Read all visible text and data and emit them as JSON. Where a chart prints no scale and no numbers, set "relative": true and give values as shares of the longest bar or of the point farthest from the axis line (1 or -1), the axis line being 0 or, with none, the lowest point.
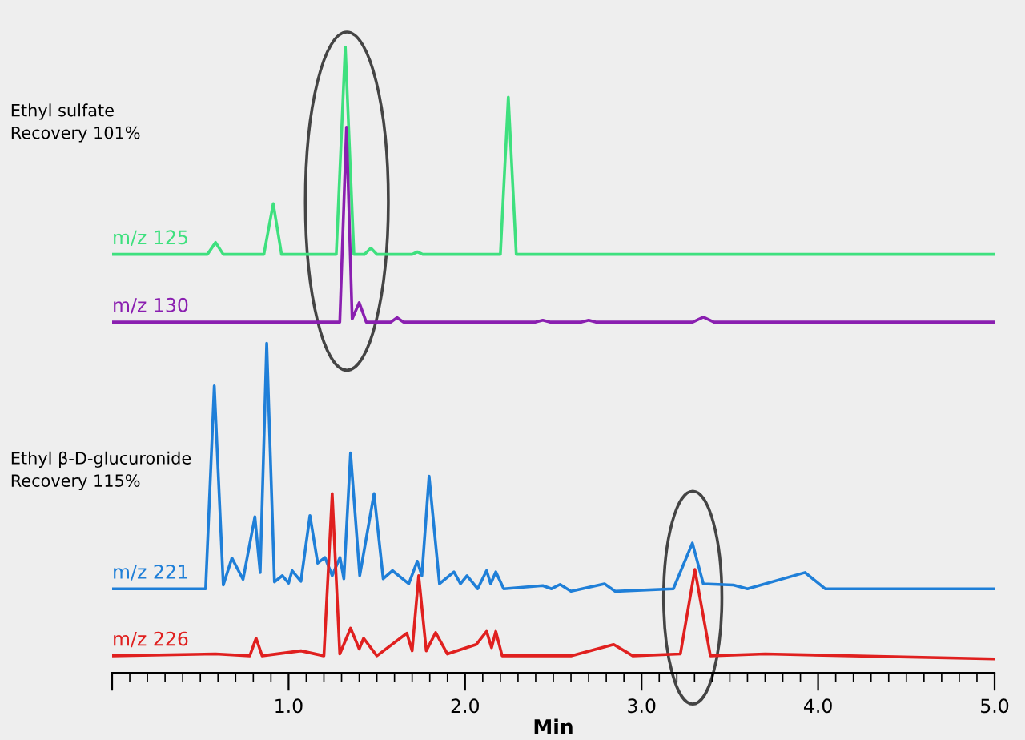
{
  "chart_data": {
    "type": "line",
    "relative": true,
    "xlabel": "Min",
    "xlim": [
      0,
      5.0
    ],
    "xticks": [
      {
        "value": 0,
        "label": null
      },
      {
        "value": 1,
        "label": "1.0"
      },
      {
        "value": 2,
        "label": "2.0"
      },
      {
        "value": 3,
        "label": "3.0"
      },
      {
        "value": 4,
        "label": "4.0"
      },
      {
        "value": 5,
        "label": "5.0"
      }
    ],
    "tick_labels": "x",
    "grid": false,
    "legend": false,
    "marker": "none",
    "line_style": "solid",
    "annotations": [
      "Ethyl sulfate\nRecovery 101%",
      "Ethyl β-D-glucuronide\nRecovery 115%"
    ],
    "series": [
      {
        "name": "m/z 125",
        "color": "#3ee07e",
        "x": [
          0,
          0.54,
          0.586,
          0.63,
          0.86,
          0.913,
          0.96,
          1.27,
          1.321,
          1.37,
          1.43,
          1.466,
          1.5,
          1.7,
          1.73,
          1.76,
          2.2,
          2.245,
          2.29,
          3.0,
          4.0,
          5.0
        ],
        "values": [
          0.668,
          0.668,
          0.687,
          0.668,
          0.668,
          0.749,
          0.668,
          0.668,
          1.0,
          0.668,
          0.668,
          0.678,
          0.668,
          0.668,
          0.672,
          0.668,
          0.668,
          0.919,
          0.668,
          0.668,
          0.668,
          0.668
        ]
      },
      {
        "name": "m/z 130",
        "color": "#8a1fb0",
        "x": [
          0,
          1.29,
          1.328,
          1.36,
          1.4,
          1.44,
          1.58,
          1.614,
          1.65,
          2.4,
          2.44,
          2.48,
          2.66,
          2.7,
          2.74,
          3.29,
          3.35,
          3.41,
          5.0
        ],
        "values": [
          0.56,
          0.56,
          0.871,
          0.565,
          0.591,
          0.56,
          0.56,
          0.567,
          0.56,
          0.56,
          0.563,
          0.56,
          0.56,
          0.563,
          0.56,
          0.56,
          0.568,
          0.56,
          0.56
        ]
      },
      {
        "name": "m/z 221",
        "color": "#1f7fd8",
        "x": [
          0,
          0.53,
          0.579,
          0.63,
          0.679,
          0.742,
          0.809,
          0.839,
          0.876,
          0.92,
          0.965,
          1.0,
          1.02,
          1.07,
          1.121,
          1.165,
          1.206,
          1.247,
          1.291,
          1.313,
          1.351,
          1.403,
          1.484,
          1.536,
          1.588,
          1.681,
          1.729,
          1.755,
          1.796,
          1.855,
          1.937,
          1.974,
          2.011,
          2.071,
          2.122,
          2.145,
          2.174,
          2.219,
          2.44,
          2.49,
          2.538,
          2.6,
          2.79,
          2.85,
          3.18,
          3.288,
          3.35,
          3.52,
          3.6,
          3.926,
          4.04,
          5.0
        ],
        "values": [
          0.134,
          0.134,
          0.458,
          0.14,
          0.183,
          0.149,
          0.249,
          0.16,
          0.526,
          0.145,
          0.155,
          0.143,
          0.163,
          0.146,
          0.251,
          0.175,
          0.184,
          0.155,
          0.184,
          0.15,
          0.351,
          0.155,
          0.286,
          0.15,
          0.163,
          0.142,
          0.178,
          0.155,
          0.314,
          0.142,
          0.161,
          0.142,
          0.155,
          0.134,
          0.163,
          0.142,
          0.161,
          0.134,
          0.139,
          0.134,
          0.141,
          0.13,
          0.142,
          0.13,
          0.134,
          0.207,
          0.142,
          0.14,
          0.134,
          0.16,
          0.134,
          0.134
        ]
      },
      {
        "name": "m/z 226",
        "color": "#e0201f",
        "x": [
          0,
          0.586,
          0.78,
          0.816,
          0.85,
          1.07,
          1.2,
          1.247,
          1.29,
          1.351,
          1.4,
          1.425,
          1.5,
          1.67,
          1.7,
          1.737,
          1.78,
          1.833,
          1.9,
          2.063,
          2.122,
          2.15,
          2.174,
          2.21,
          2.6,
          2.842,
          2.95,
          3.22,
          3.302,
          3.39,
          3.7,
          5.0
        ],
        "values": [
          0.027,
          0.03,
          0.027,
          0.055,
          0.027,
          0.035,
          0.027,
          0.286,
          0.03,
          0.071,
          0.038,
          0.055,
          0.027,
          0.063,
          0.035,
          0.155,
          0.035,
          0.064,
          0.03,
          0.045,
          0.066,
          0.04,
          0.066,
          0.027,
          0.027,
          0.045,
          0.027,
          0.03,
          0.165,
          0.027,
          0.03,
          0.022
        ]
      }
    ]
  }
}
